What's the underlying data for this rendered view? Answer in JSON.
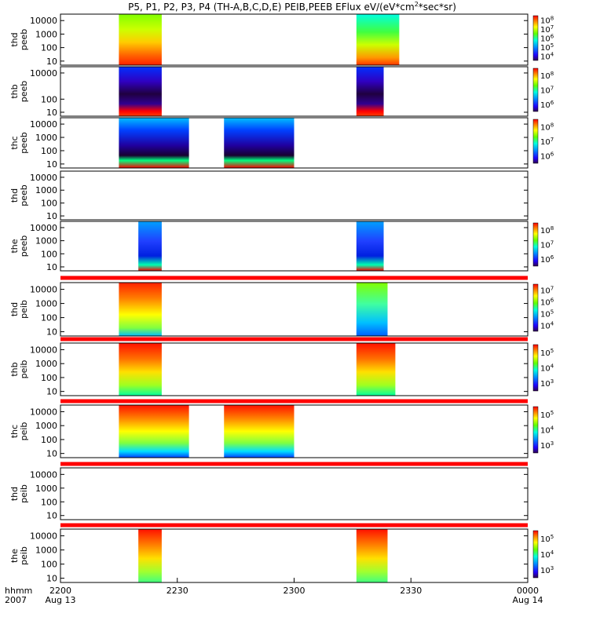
{
  "chart_data": {
    "type": "heatmap",
    "title": "P5, P1, P2, P3, P4 (TH-A,B,C,D,E) PEIB,PEEB EFlux eV/(eV*cm",
    "title_sup": "2",
    "title_tail": "*sec*sr)",
    "x_axis": {
      "range": [
        "2200",
        "0000"
      ],
      "unit_label": "hhmm",
      "year_label": "2007",
      "ticks": [
        {
          "label": "2200",
          "sub": "Aug 13"
        },
        {
          "label": "2230",
          "sub": ""
        },
        {
          "label": "2300",
          "sub": ""
        },
        {
          "label": "2330",
          "sub": ""
        },
        {
          "label": "0000",
          "sub": "Aug 14"
        }
      ]
    },
    "y_axis": {
      "scale": "log",
      "range": [
        5,
        30000
      ],
      "ticks": [
        "10",
        "100",
        "1000",
        "10000"
      ]
    },
    "panels": [
      {
        "probe": "thd",
        "instr": "peeb",
        "tick_set": [
          "10",
          "100",
          "1000",
          "10000"
        ],
        "colorbar": [
          "10^4",
          "10^5",
          "10^6",
          "10^7",
          "10^8"
        ],
        "segments": [
          {
            "start": "2215",
            "end": "2226",
            "style": "tha_peeb_1"
          },
          {
            "start": "2316",
            "end": "2327",
            "style": "tha_peeb_2"
          }
        ]
      },
      {
        "probe": "thb",
        "instr": "peeb",
        "tick_set": [
          "10",
          "100",
          "10000"
        ],
        "colorbar": [
          "10^6",
          "10^7",
          "10^8"
        ],
        "segments": [
          {
            "start": "2215",
            "end": "2226",
            "style": "thb_peeb"
          },
          {
            "start": "2316",
            "end": "2323",
            "style": "thb_peeb"
          }
        ]
      },
      {
        "probe": "thc",
        "instr": "peeb",
        "tick_set": [
          "10",
          "100",
          "1000",
          "10000"
        ],
        "colorbar": [
          "10^6",
          "10^7",
          "10^8"
        ],
        "segments": [
          {
            "start": "2215",
            "end": "2233",
            "style": "thc_peeb"
          },
          {
            "start": "2242",
            "end": "2300",
            "style": "thc_peeb"
          }
        ]
      },
      {
        "probe": "thd",
        "instr": "peeb",
        "tick_set": [
          "10",
          "100",
          "1000",
          "10000"
        ],
        "colorbar": [],
        "segments": []
      },
      {
        "probe": "the",
        "instr": "peeb",
        "tick_set": [
          "10",
          "100",
          "1000",
          "10000"
        ],
        "colorbar": [
          "10^6",
          "10^7",
          "10^8"
        ],
        "segments": [
          {
            "start": "2220",
            "end": "2226",
            "style": "the_peeb"
          },
          {
            "start": "2316",
            "end": "2323",
            "style": "the_peeb"
          }
        ]
      },
      {
        "probe": "thd",
        "instr": "peib",
        "tick_set": [
          "10",
          "100",
          "1000",
          "10000"
        ],
        "colorbar": [
          "10^4",
          "10^5",
          "10^6",
          "10^7"
        ],
        "segments": [
          {
            "start": "2215",
            "end": "2226",
            "style": "tha_peib"
          },
          {
            "start": "2316",
            "end": "2324",
            "style": "tha_peib_2"
          }
        ]
      },
      {
        "probe": "thb",
        "instr": "peib",
        "tick_set": [
          "10",
          "100",
          "1000",
          "10000"
        ],
        "colorbar": [
          "10^3",
          "10^4",
          "10^5"
        ],
        "segments": [
          {
            "start": "2215",
            "end": "2226",
            "style": "thb_peib"
          },
          {
            "start": "2316",
            "end": "2326",
            "style": "thb_peib"
          }
        ]
      },
      {
        "probe": "thc",
        "instr": "peib",
        "tick_set": [
          "10",
          "100",
          "1000",
          "10000"
        ],
        "colorbar": [
          "10^3",
          "10^4",
          "10^5"
        ],
        "segments": [
          {
            "start": "2215",
            "end": "2233",
            "style": "thc_peib"
          },
          {
            "start": "2242",
            "end": "2300",
            "style": "thc_peib"
          }
        ]
      },
      {
        "probe": "thd",
        "instr": "peib",
        "tick_set": [
          "10",
          "100",
          "1000",
          "10000"
        ],
        "colorbar": [],
        "segments": []
      },
      {
        "probe": "the",
        "instr": "peib",
        "tick_set": [
          "10",
          "100",
          "1000",
          "10000"
        ],
        "colorbar": [
          "10^3",
          "10^4",
          "10^5"
        ],
        "segments": [
          {
            "start": "2220",
            "end": "2226",
            "style": "the_peib"
          },
          {
            "start": "2316",
            "end": "2324",
            "style": "the_peib"
          }
        ]
      }
    ],
    "grid": false,
    "legend": "right colorbars"
  }
}
